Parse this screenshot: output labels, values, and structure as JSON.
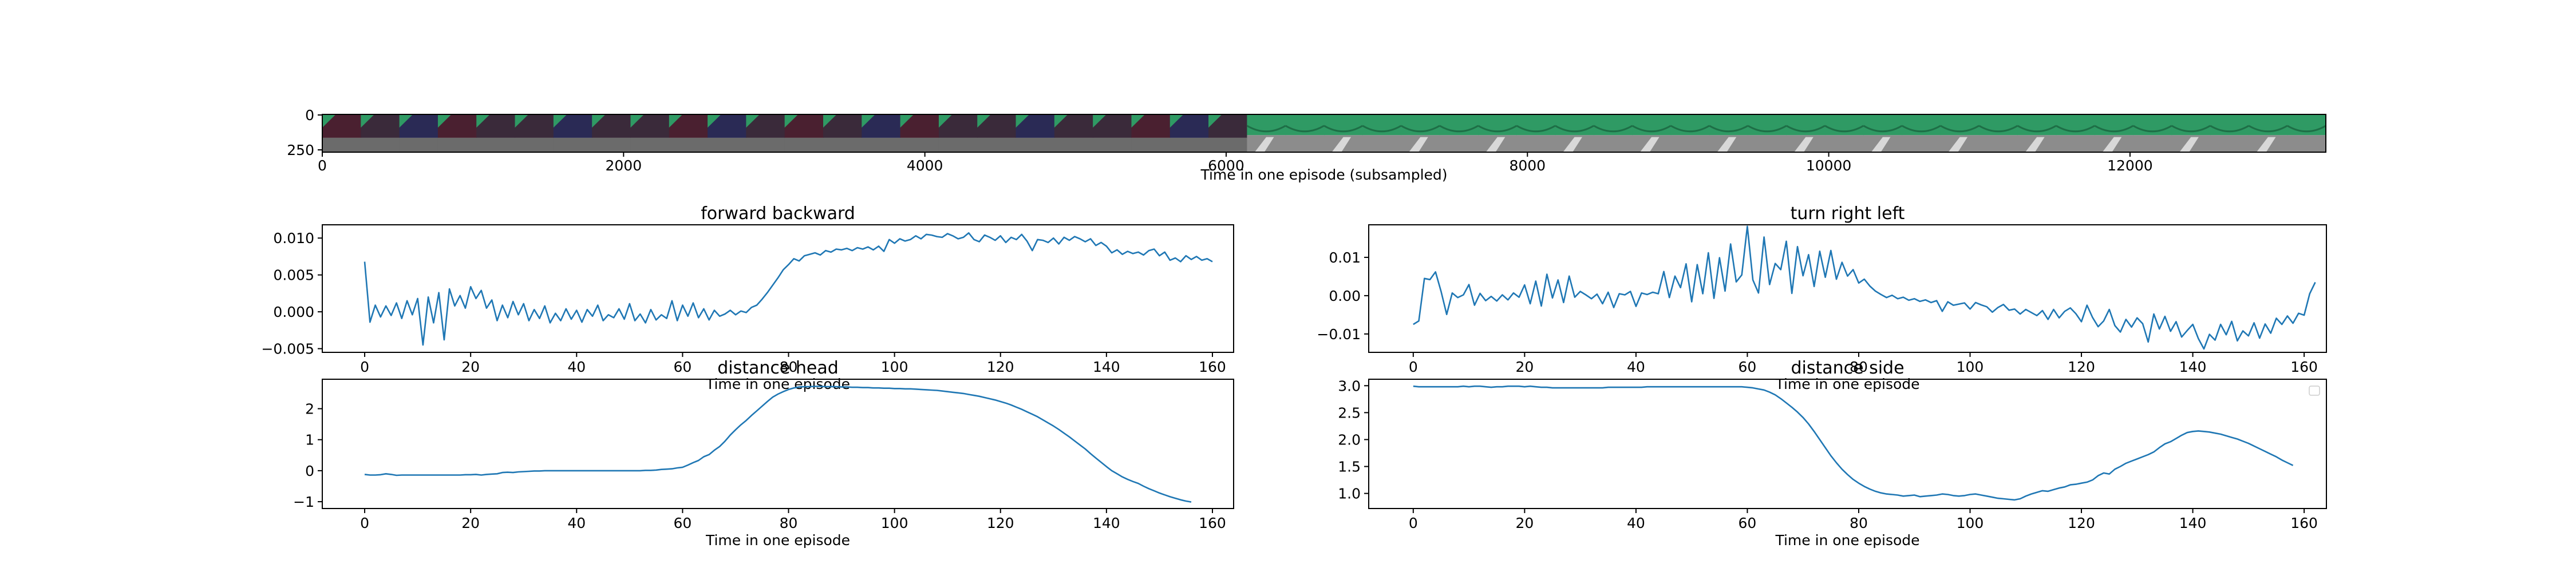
{
  "colors": {
    "line": "#1f77b4",
    "axis": "#000000",
    "background": "#ffffff",
    "film_dark_frame": "#3a2a3a",
    "film_green": "#2f9a64",
    "film_floor": "#8c8c8c"
  },
  "filmstrip": {
    "xlabel": "Time in one episode (subsampled)",
    "xticks": [
      0,
      2000,
      4000,
      6000,
      8000,
      10000,
      12000
    ],
    "yticks": [
      0,
      250
    ],
    "xlim": [
      0,
      13300
    ],
    "frame_count": 52,
    "dark_frames_until": 6200
  },
  "chart_data": [
    {
      "type": "line",
      "title": "forward backward",
      "xlabel": "Time in one episode",
      "xlim": [
        -8,
        164
      ],
      "ylim": [
        -0.0055,
        0.0118
      ],
      "xticks": [
        0,
        20,
        40,
        60,
        80,
        100,
        120,
        140,
        160
      ],
      "yticks": [
        {
          "v": 0.01,
          "label": "0.010"
        },
        {
          "v": 0.005,
          "label": "0.005"
        },
        {
          "v": 0.0,
          "label": "0.000"
        },
        {
          "v": -0.005,
          "label": "−0.005"
        }
      ],
      "series": [
        {
          "values": [
            0.0068,
            -0.0014,
            0.0009,
            -0.0007,
            0.0008,
            -0.0005,
            0.0012,
            -0.0009,
            0.0015,
            -0.0004,
            0.0018,
            -0.0045,
            0.002,
            -0.0015,
            0.0026,
            -0.0038,
            0.0031,
            0.0008,
            0.0022,
            0.0005,
            0.0034,
            0.0018,
            0.0029,
            0.0005,
            0.0016,
            -0.0012,
            0.0009,
            -0.0008,
            0.0014,
            -0.0004,
            0.0011,
            -0.0012,
            0.0003,
            -0.0009,
            0.0008,
            -0.0015,
            -0.0002,
            -0.0012,
            0.0004,
            -0.001,
            0.0002,
            -0.0014,
            0.0003,
            -0.0006,
            0.0009,
            -0.0012,
            -0.0004,
            -0.0008,
            0.0004,
            -0.001,
            0.0011,
            -0.0012,
            -0.0003,
            -0.0015,
            0.0003,
            -0.0011,
            -0.0004,
            -0.0009,
            0.0015,
            -0.0012,
            0.0009,
            -0.0006,
            0.0012,
            -0.0008,
            0.0004,
            -0.0011,
            0.0002,
            -0.0006,
            -0.0003,
            0.0002,
            -0.0004,
            0.0001,
            -0.0001,
            0.0006,
            0.0009,
            0.0017,
            0.0026,
            0.0036,
            0.0046,
            0.0057,
            0.0064,
            0.0072,
            0.0069,
            0.0076,
            0.0078,
            0.008,
            0.0077,
            0.0083,
            0.0081,
            0.0085,
            0.0084,
            0.0086,
            0.0083,
            0.0087,
            0.0085,
            0.0088,
            0.0084,
            0.0089,
            0.0082,
            0.0098,
            0.0093,
            0.0099,
            0.0096,
            0.0098,
            0.0103,
            0.0099,
            0.0105,
            0.0104,
            0.0102,
            0.0101,
            0.0106,
            0.0103,
            0.0099,
            0.0101,
            0.0107,
            0.0098,
            0.0095,
            0.0104,
            0.0101,
            0.0097,
            0.0103,
            0.0094,
            0.0101,
            0.0098,
            0.0105,
            0.0096,
            0.0083,
            0.0098,
            0.0097,
            0.0094,
            0.01,
            0.0092,
            0.0101,
            0.0097,
            0.0102,
            0.0099,
            0.0095,
            0.0099,
            0.009,
            0.0094,
            0.0089,
            0.008,
            0.0084,
            0.0078,
            0.0082,
            0.0079,
            0.0081,
            0.0077,
            0.0083,
            0.0085,
            0.0076,
            0.0081,
            0.007,
            0.0073,
            0.0068,
            0.0076,
            0.0071,
            0.0075,
            0.007,
            0.0072,
            0.0068
          ]
        }
      ]
    },
    {
      "type": "line",
      "title": "turn right left",
      "xlabel": "Time in one episode",
      "xlim": [
        -8,
        164
      ],
      "ylim": [
        -0.0148,
        0.0185
      ],
      "xticks": [
        0,
        20,
        40,
        60,
        80,
        100,
        120,
        140,
        160
      ],
      "yticks": [
        {
          "v": 0.01,
          "label": "0.01"
        },
        {
          "v": 0.0,
          "label": "0.00"
        },
        {
          "v": -0.01,
          "label": "−0.01"
        }
      ],
      "series": [
        {
          "values": [
            -0.0075,
            -0.0066,
            0.0045,
            0.0042,
            0.0062,
            0.0011,
            -0.0049,
            0.0007,
            -0.0005,
            0.0002,
            0.0029,
            -0.0025,
            0.0006,
            -0.0013,
            -0.0002,
            -0.0014,
            0.0002,
            -0.0011,
            0.0007,
            -0.0004,
            0.0028,
            -0.0021,
            0.0038,
            -0.0027,
            0.0056,
            -0.0006,
            0.0041,
            -0.0018,
            0.0051,
            -0.0004,
            0.0011,
            0.0002,
            -0.0008,
            0.0004,
            -0.0021,
            0.0009,
            -0.0031,
            0.0005,
            0.0002,
            0.0011,
            -0.0028,
            0.0007,
            0.0003,
            0.0009,
            0.0005,
            0.0063,
            -0.0005,
            0.0051,
            0.0021,
            0.0083,
            -0.0016,
            0.0081,
            0.0005,
            0.0112,
            -0.0007,
            0.0099,
            0.0012,
            0.0135,
            0.0036,
            0.0054,
            0.0181,
            0.0041,
            0.0007,
            0.0153,
            0.0029,
            0.0084,
            0.0068,
            0.0142,
            0.0006,
            0.0128,
            0.0052,
            0.0107,
            0.0024,
            0.0116,
            0.0048,
            0.0118,
            0.0043,
            0.0087,
            0.0051,
            0.0068,
            0.0033,
            0.0043,
            0.0025,
            0.0012,
            0.0003,
            -0.0005,
            0.0001,
            -0.0008,
            -0.0004,
            -0.0012,
            -0.0008,
            -0.0015,
            -0.0011,
            -0.0018,
            -0.0013,
            -0.0041,
            -0.0016,
            -0.0025,
            -0.0022,
            -0.0019,
            -0.0035,
            -0.0018,
            -0.0024,
            -0.0029,
            -0.0043,
            -0.0031,
            -0.0023,
            -0.0038,
            -0.0035,
            -0.0048,
            -0.0036,
            -0.0044,
            -0.0052,
            -0.0039,
            -0.0062,
            -0.0036,
            -0.0058,
            -0.0041,
            -0.0032,
            -0.0047,
            -0.0068,
            -0.0025,
            -0.0057,
            -0.0081,
            -0.0066,
            -0.0036,
            -0.0078,
            -0.0095,
            -0.0062,
            -0.0082,
            -0.0058,
            -0.0073,
            -0.0121,
            -0.0048,
            -0.0087,
            -0.0054,
            -0.0093,
            -0.0068,
            -0.0108,
            -0.0091,
            -0.0075,
            -0.0112,
            -0.0139,
            -0.0101,
            -0.0116,
            -0.0075,
            -0.0102,
            -0.0067,
            -0.0118,
            -0.0092,
            -0.0105,
            -0.0071,
            -0.0111,
            -0.0074,
            -0.0098,
            -0.0059,
            -0.0075,
            -0.0053,
            -0.0072,
            -0.0046,
            -0.0051,
            0.0005,
            0.0035
          ]
        }
      ]
    },
    {
      "type": "line",
      "title": "distance head",
      "xlabel": "Time in one episode",
      "xlim": [
        -8,
        164
      ],
      "ylim": [
        -1.22,
        2.95
      ],
      "xticks": [
        0,
        20,
        40,
        60,
        80,
        100,
        120,
        140,
        160
      ],
      "yticks": [
        {
          "v": 2,
          "label": "2"
        },
        {
          "v": 1,
          "label": "1"
        },
        {
          "v": 0,
          "label": "0"
        },
        {
          "v": -1,
          "label": "−1"
        }
      ],
      "series": [
        {
          "values": [
            -0.12,
            -0.14,
            -0.14,
            -0.13,
            -0.1,
            -0.12,
            -0.15,
            -0.14,
            -0.14,
            -0.14,
            -0.14,
            -0.14,
            -0.14,
            -0.14,
            -0.14,
            -0.14,
            -0.14,
            -0.14,
            -0.14,
            -0.13,
            -0.13,
            -0.12,
            -0.14,
            -0.12,
            -0.11,
            -0.1,
            -0.06,
            -0.05,
            -0.06,
            -0.04,
            -0.03,
            -0.02,
            -0.01,
            -0.01,
            0,
            0,
            0,
            0,
            0,
            0,
            0,
            0,
            0,
            0,
            0,
            0,
            0,
            0,
            0,
            0,
            0,
            0,
            0,
            0.01,
            0.01,
            0.02,
            0.04,
            0.05,
            0.06,
            0.09,
            0.11,
            0.18,
            0.26,
            0.33,
            0.45,
            0.52,
            0.66,
            0.78,
            0.95,
            1.15,
            1.32,
            1.48,
            1.62,
            1.78,
            1.93,
            2.08,
            2.23,
            2.37,
            2.47,
            2.55,
            2.62,
            2.67,
            2.7,
            2.71,
            2.71,
            2.72,
            2.72,
            2.71,
            2.71,
            2.71,
            2.7,
            2.7,
            2.69,
            2.69,
            2.68,
            2.68,
            2.67,
            2.67,
            2.66,
            2.66,
            2.65,
            2.65,
            2.64,
            2.64,
            2.63,
            2.62,
            2.61,
            2.6,
            2.59,
            2.57,
            2.55,
            2.53,
            2.51,
            2.49,
            2.46,
            2.43,
            2.4,
            2.36,
            2.32,
            2.28,
            2.23,
            2.18,
            2.12,
            2.05,
            1.98,
            1.9,
            1.82,
            1.74,
            1.64,
            1.54,
            1.44,
            1.33,
            1.21,
            1.09,
            0.96,
            0.83,
            0.7,
            0.55,
            0.41,
            0.27,
            0.13,
            0,
            -0.1,
            -0.2,
            -0.28,
            -0.35,
            -0.41,
            -0.5,
            -0.58,
            -0.65,
            -0.72,
            -0.78,
            -0.84,
            -0.89,
            -0.94,
            -0.98,
            -1.01
          ]
        }
      ]
    },
    {
      "type": "line",
      "title": "distance side",
      "xlabel": "Time in one episode",
      "xlim": [
        -8,
        164
      ],
      "ylim": [
        0.72,
        3.12
      ],
      "xticks": [
        0,
        20,
        40,
        60,
        80,
        100,
        120,
        140,
        160
      ],
      "yticks": [
        {
          "v": 3.0,
          "label": "3.0"
        },
        {
          "v": 2.5,
          "label": "2.5"
        },
        {
          "v": 2.0,
          "label": "2.0"
        },
        {
          "v": 1.5,
          "label": "1.5"
        },
        {
          "v": 1.0,
          "label": "1.0"
        }
      ],
      "legend": "top-right",
      "series": [
        {
          "values": [
            2.99,
            2.98,
            2.98,
            2.98,
            2.98,
            2.98,
            2.98,
            2.98,
            2.98,
            2.99,
            2.98,
            2.99,
            2.99,
            2.98,
            2.97,
            2.98,
            2.98,
            2.99,
            2.99,
            2.99,
            2.98,
            2.99,
            2.98,
            2.97,
            2.97,
            2.96,
            2.96,
            2.96,
            2.96,
            2.96,
            2.96,
            2.96,
            2.96,
            2.96,
            2.96,
            2.97,
            2.97,
            2.97,
            2.97,
            2.97,
            2.97,
            2.97,
            2.98,
            2.98,
            2.98,
            2.98,
            2.98,
            2.98,
            2.98,
            2.98,
            2.98,
            2.98,
            2.98,
            2.98,
            2.98,
            2.98,
            2.98,
            2.98,
            2.98,
            2.98,
            2.97,
            2.96,
            2.94,
            2.92,
            2.88,
            2.83,
            2.76,
            2.68,
            2.6,
            2.51,
            2.41,
            2.29,
            2.15,
            2.0,
            1.85,
            1.7,
            1.57,
            1.45,
            1.35,
            1.26,
            1.19,
            1.13,
            1.08,
            1.04,
            1.01,
            0.99,
            0.98,
            0.97,
            0.95,
            0.96,
            0.97,
            0.94,
            0.95,
            0.96,
            0.97,
            0.99,
            0.98,
            0.96,
            0.95,
            0.96,
            0.98,
            0.99,
            0.97,
            0.95,
            0.93,
            0.91,
            0.9,
            0.89,
            0.88,
            0.9,
            0.95,
            0.99,
            1.02,
            1.05,
            1.04,
            1.07,
            1.1,
            1.12,
            1.16,
            1.17,
            1.19,
            1.21,
            1.25,
            1.33,
            1.38,
            1.36,
            1.45,
            1.5,
            1.56,
            1.6,
            1.64,
            1.68,
            1.72,
            1.77,
            1.85,
            1.92,
            1.96,
            2.02,
            2.08,
            2.13,
            2.15,
            2.16,
            2.15,
            2.14,
            2.12,
            2.1,
            2.07,
            2.04,
            2.01,
            1.97,
            1.93,
            1.88,
            1.83,
            1.78,
            1.73,
            1.68,
            1.62,
            1.57,
            1.52
          ]
        }
      ]
    }
  ]
}
